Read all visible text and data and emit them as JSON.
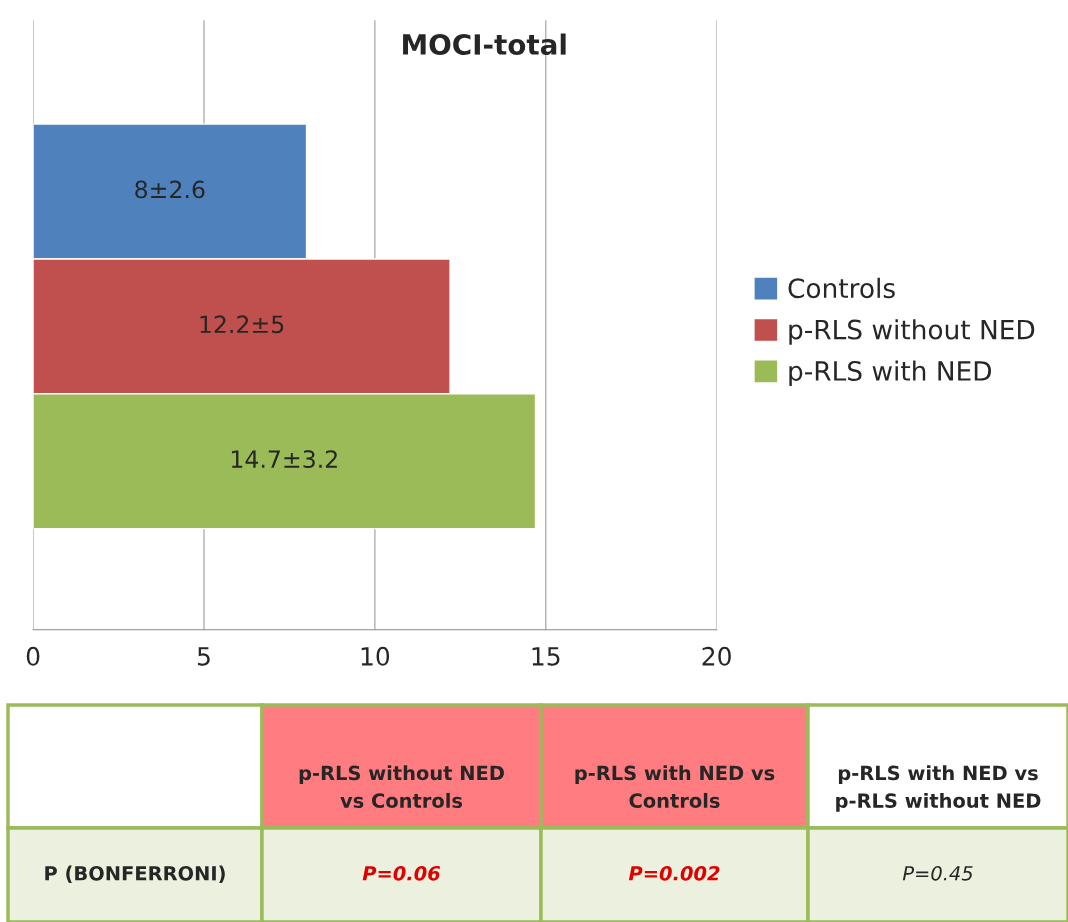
{
  "chart_data": {
    "type": "bar",
    "orientation": "horizontal",
    "title": "MOCI-total",
    "categories": [
      null
    ],
    "series": [
      {
        "name": "Controls",
        "color": "#4f81bd",
        "values": [
          8
        ],
        "value_labels": [
          "8±2.6"
        ]
      },
      {
        "name": "p-RLS without NED",
        "color": "#c0504d",
        "values": [
          12.2
        ],
        "value_labels": [
          "12.2±5"
        ]
      },
      {
        "name": "p-RLS with NED",
        "color": "#9bbb59",
        "values": [
          14.7
        ],
        "value_labels": [
          "14.7±3.2"
        ]
      }
    ],
    "xlim": [
      0,
      20
    ],
    "xticks": [
      0,
      5,
      10,
      15,
      20
    ],
    "grid": "x",
    "legend": "right",
    "annotations": [
      "p-RLS without NED\nvs Controls",
      "p-RLS with NED vs\nControls",
      "p-RLS with NED vs\np-RLS without NED",
      "P (BONFERRONI)",
      "P=0.06",
      "P=0.002",
      "P=0.45"
    ]
  }
}
